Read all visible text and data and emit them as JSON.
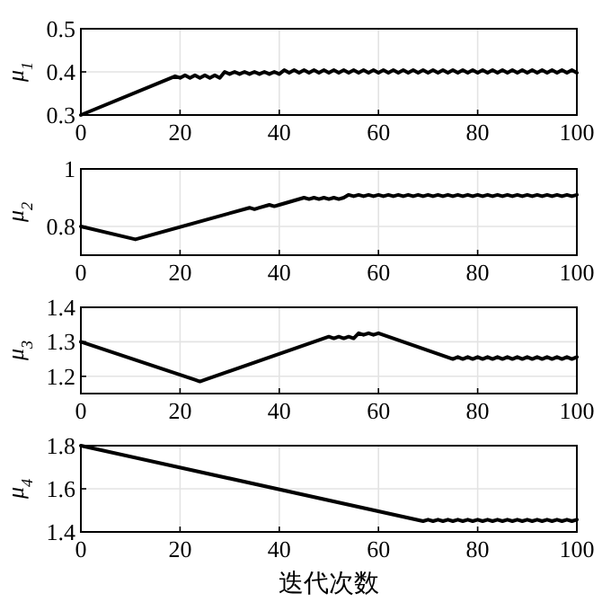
{
  "chart_data": [
    {
      "type": "line",
      "ylabel": "μ$_{1}$",
      "xlim": [
        0,
        100
      ],
      "xticks": [
        0,
        20,
        40,
        60,
        80,
        100
      ],
      "ylim": [
        0.3,
        0.5
      ],
      "yticks": [
        0.3,
        0.4,
        0.5
      ],
      "grid": true,
      "series": [
        {
          "color": "#000000",
          "x": [
            0,
            19,
            20,
            21,
            22,
            23,
            24,
            25,
            26,
            27,
            28,
            29,
            30,
            31,
            32,
            33,
            34,
            35,
            36,
            37,
            38,
            39,
            40,
            41,
            42,
            43,
            44,
            45,
            46,
            47,
            48,
            49,
            50,
            51,
            52,
            53,
            54,
            55,
            56,
            57,
            58,
            59,
            60,
            61,
            62,
            63,
            64,
            65,
            66,
            67,
            68,
            69,
            70,
            71,
            72,
            73,
            74,
            75,
            76,
            77,
            78,
            79,
            80,
            81,
            82,
            83,
            84,
            85,
            86,
            87,
            88,
            89,
            90,
            91,
            92,
            93,
            94,
            95,
            96,
            97,
            98,
            99,
            100
          ],
          "values": [
            0.3,
            0.39,
            0.386,
            0.392,
            0.386,
            0.392,
            0.386,
            0.392,
            0.386,
            0.392,
            0.386,
            0.4,
            0.395,
            0.4,
            0.395,
            0.4,
            0.395,
            0.4,
            0.395,
            0.4,
            0.395,
            0.4,
            0.395,
            0.404,
            0.398,
            0.404,
            0.398,
            0.404,
            0.398,
            0.404,
            0.398,
            0.404,
            0.398,
            0.404,
            0.398,
            0.404,
            0.398,
            0.404,
            0.398,
            0.404,
            0.398,
            0.404,
            0.398,
            0.404,
            0.398,
            0.404,
            0.398,
            0.404,
            0.398,
            0.404,
            0.398,
            0.404,
            0.398,
            0.404,
            0.398,
            0.404,
            0.398,
            0.404,
            0.398,
            0.404,
            0.398,
            0.404,
            0.398,
            0.404,
            0.398,
            0.404,
            0.398,
            0.404,
            0.398,
            0.404,
            0.398,
            0.404,
            0.398,
            0.404,
            0.398,
            0.404,
            0.398,
            0.404,
            0.398,
            0.404,
            0.398,
            0.404,
            0.398
          ]
        }
      ]
    },
    {
      "type": "line",
      "ylabel": "μ$_{2}$",
      "xlim": [
        0,
        100
      ],
      "xticks": [
        0,
        20,
        40,
        60,
        80,
        100
      ],
      "ylim": [
        0.7,
        1
      ],
      "yticks": [
        0.8,
        1
      ],
      "grid": true,
      "series": [
        {
          "color": "#000000",
          "x": [
            0,
            11,
            34,
            35,
            36,
            38,
            39,
            40,
            45,
            46,
            47,
            48,
            49,
            50,
            51,
            52,
            53,
            54,
            55,
            56,
            57,
            58,
            59,
            60,
            61,
            62,
            63,
            64,
            65,
            66,
            67,
            68,
            69,
            70,
            71,
            72,
            73,
            74,
            75,
            76,
            77,
            78,
            79,
            80,
            81,
            82,
            83,
            84,
            85,
            86,
            87,
            88,
            89,
            90,
            91,
            92,
            93,
            94,
            95,
            96,
            97,
            98,
            99,
            100
          ],
          "values": [
            0.8,
            0.755,
            0.865,
            0.86,
            0.865,
            0.875,
            0.87,
            0.875,
            0.9,
            0.895,
            0.9,
            0.895,
            0.9,
            0.895,
            0.9,
            0.895,
            0.9,
            0.91,
            0.905,
            0.91,
            0.905,
            0.91,
            0.905,
            0.91,
            0.905,
            0.91,
            0.905,
            0.91,
            0.905,
            0.91,
            0.905,
            0.91,
            0.905,
            0.91,
            0.905,
            0.91,
            0.905,
            0.91,
            0.905,
            0.91,
            0.905,
            0.91,
            0.905,
            0.91,
            0.905,
            0.91,
            0.905,
            0.91,
            0.905,
            0.91,
            0.905,
            0.91,
            0.905,
            0.91,
            0.905,
            0.91,
            0.905,
            0.91,
            0.905,
            0.91,
            0.905,
            0.91,
            0.905,
            0.91
          ]
        }
      ]
    },
    {
      "type": "line",
      "ylabel": "μ$_{3}$",
      "xlim": [
        0,
        100
      ],
      "xticks": [
        0,
        20,
        40,
        60,
        80,
        100
      ],
      "ylim": [
        1.15,
        1.4
      ],
      "yticks": [
        1.2,
        1.3,
        1.4
      ],
      "grid": true,
      "series": [
        {
          "color": "#000000",
          "x": [
            0,
            23,
            24,
            25,
            50,
            51,
            52,
            53,
            54,
            55,
            56,
            57,
            58,
            59,
            60,
            75,
            76,
            77,
            78,
            79,
            80,
            81,
            82,
            83,
            84,
            85,
            86,
            87,
            88,
            89,
            90,
            91,
            92,
            93,
            94,
            95,
            96,
            97,
            98,
            99,
            100
          ],
          "values": [
            1.3,
            1.19,
            1.185,
            1.19,
            1.315,
            1.31,
            1.315,
            1.31,
            1.315,
            1.31,
            1.325,
            1.32,
            1.325,
            1.32,
            1.325,
            1.25,
            1.256,
            1.25,
            1.256,
            1.25,
            1.256,
            1.25,
            1.256,
            1.25,
            1.256,
            1.25,
            1.256,
            1.25,
            1.256,
            1.25,
            1.256,
            1.25,
            1.256,
            1.25,
            1.256,
            1.25,
            1.256,
            1.25,
            1.256,
            1.25,
            1.256
          ]
        }
      ]
    },
    {
      "type": "line",
      "ylabel": "μ$_{4}$",
      "xlabel": "迭代次数",
      "xlim": [
        0,
        100
      ],
      "xticks": [
        0,
        20,
        40,
        60,
        80,
        100
      ],
      "ylim": [
        1.4,
        1.8
      ],
      "yticks": [
        1.4,
        1.6,
        1.8
      ],
      "grid": true,
      "series": [
        {
          "color": "#000000",
          "x": [
            0,
            69,
            70,
            71,
            72,
            73,
            74,
            75,
            76,
            77,
            78,
            79,
            80,
            81,
            82,
            83,
            84,
            85,
            86,
            87,
            88,
            89,
            90,
            91,
            92,
            93,
            94,
            95,
            96,
            97,
            98,
            99,
            100
          ],
          "values": [
            1.8,
            1.45,
            1.457,
            1.45,
            1.457,
            1.45,
            1.457,
            1.45,
            1.457,
            1.45,
            1.457,
            1.45,
            1.457,
            1.45,
            1.457,
            1.45,
            1.457,
            1.45,
            1.457,
            1.45,
            1.457,
            1.45,
            1.457,
            1.45,
            1.457,
            1.45,
            1.457,
            1.45,
            1.457,
            1.45,
            1.457,
            1.45,
            1.457
          ]
        }
      ]
    }
  ]
}
